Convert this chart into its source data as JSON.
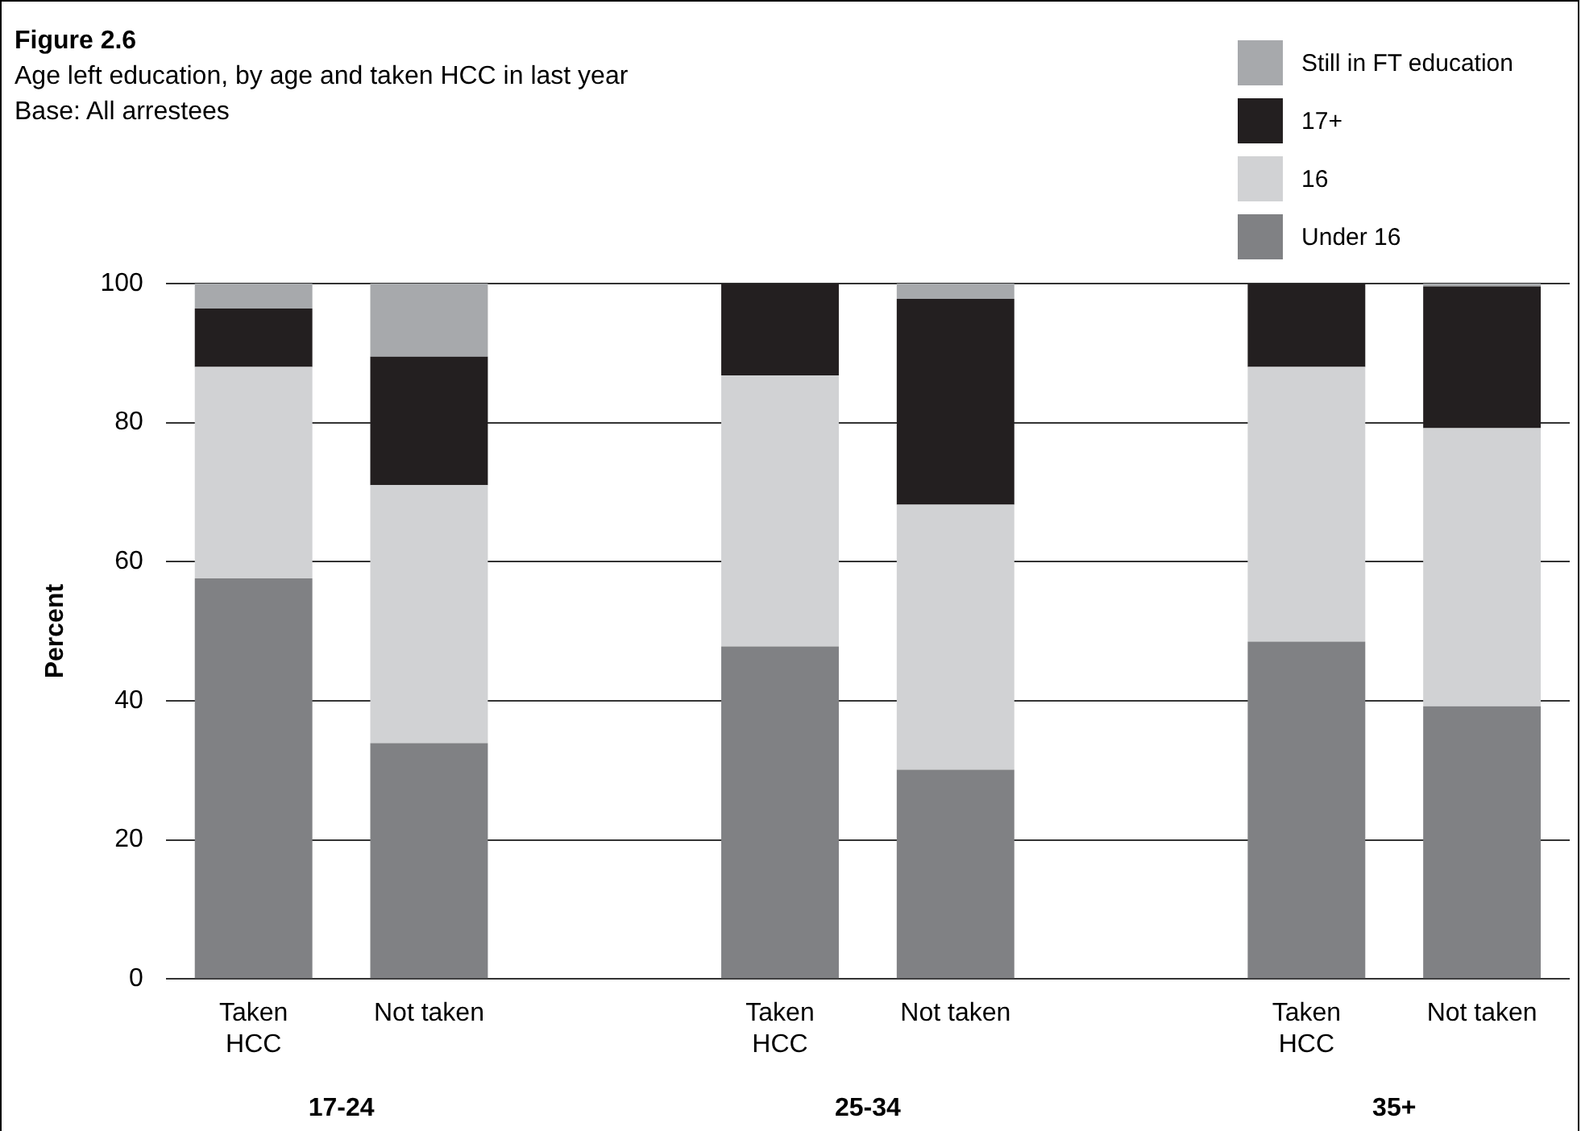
{
  "chart_data": {
    "type": "bar",
    "title": "Figure 2.6",
    "subtitle": "Age left education, by age and taken HCC in last year",
    "annotations": [
      "Base: All arrestees",
      "17-24",
      "25-34",
      "35+"
    ],
    "ylabel": "Percent",
    "categories": [
      "Taken HCC",
      "Not taken",
      null,
      "Taken HCC",
      "Not taken",
      null,
      "Taken HCC",
      "Not taken"
    ],
    "stacked": true,
    "series": [
      {
        "name": "Under 16",
        "color": "#808184",
        "values": [
          57.6,
          33.9,
          null,
          47.8,
          30.1,
          null,
          48.5,
          39.2
        ]
      },
      {
        "name": "16",
        "color": "#d1d2d4",
        "values": [
          30.4,
          37.1,
          null,
          39.0,
          38.1,
          null,
          39.5,
          40.0
        ]
      },
      {
        "name": "17+",
        "color": "#231f20",
        "values": [
          8.4,
          18.5,
          null,
          13.2,
          29.6,
          null,
          12.0,
          20.4
        ]
      },
      {
        "name": "Still in FT education",
        "color": "#a7a9ac",
        "values": [
          3.6,
          10.5,
          null,
          0,
          2.2,
          null,
          0,
          0.4
        ]
      }
    ],
    "ylim": [
      0,
      100
    ],
    "yticks": [
      0,
      20,
      40,
      60,
      80,
      100
    ],
    "grid": "y",
    "legend": "top right"
  }
}
